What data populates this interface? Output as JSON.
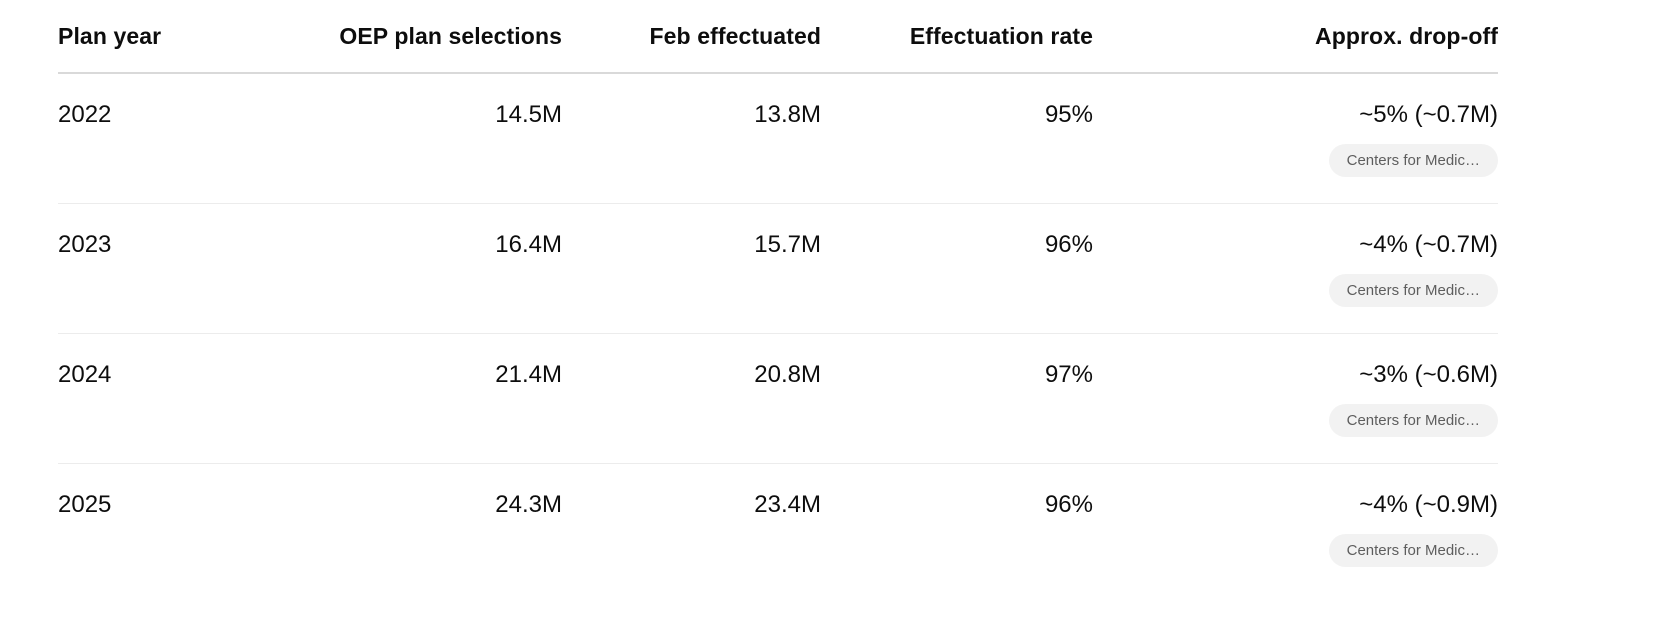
{
  "table": {
    "columns": [
      {
        "label": "Plan year",
        "align": "left"
      },
      {
        "label": "OEP plan selections",
        "align": "right"
      },
      {
        "label": "Feb effectuated",
        "align": "right"
      },
      {
        "label": "Effectuation rate",
        "align": "right"
      },
      {
        "label": "Approx. drop-off",
        "align": "right"
      }
    ],
    "rows": [
      {
        "plan_year": "2022",
        "oep_plan_selections": "14.5M",
        "feb_effectuated": "13.8M",
        "effectuation_rate": "95%",
        "approx_drop_off": "~5% (~0.7M)",
        "citation_label": "Centers for Medic…"
      },
      {
        "plan_year": "2023",
        "oep_plan_selections": "16.4M",
        "feb_effectuated": "15.7M",
        "effectuation_rate": "96%",
        "approx_drop_off": "~4% (~0.7M)",
        "citation_label": "Centers for Medic…"
      },
      {
        "plan_year": "2024",
        "oep_plan_selections": "21.4M",
        "feb_effectuated": "20.8M",
        "effectuation_rate": "97%",
        "approx_drop_off": "~3% (~0.6M)",
        "citation_label": "Centers for Medic…"
      },
      {
        "plan_year": "2025",
        "oep_plan_selections": "24.3M",
        "feb_effectuated": "23.4M",
        "effectuation_rate": "96%",
        "approx_drop_off": "~4% (~0.9M)",
        "citation_label": "Centers for Medic…"
      }
    ]
  },
  "colors": {
    "text_primary": "#0d0d0d",
    "header_divider": "#d9d9d9",
    "row_divider": "#ececec",
    "chip_background": "#f2f2f2",
    "chip_text": "#5e5e5e"
  }
}
